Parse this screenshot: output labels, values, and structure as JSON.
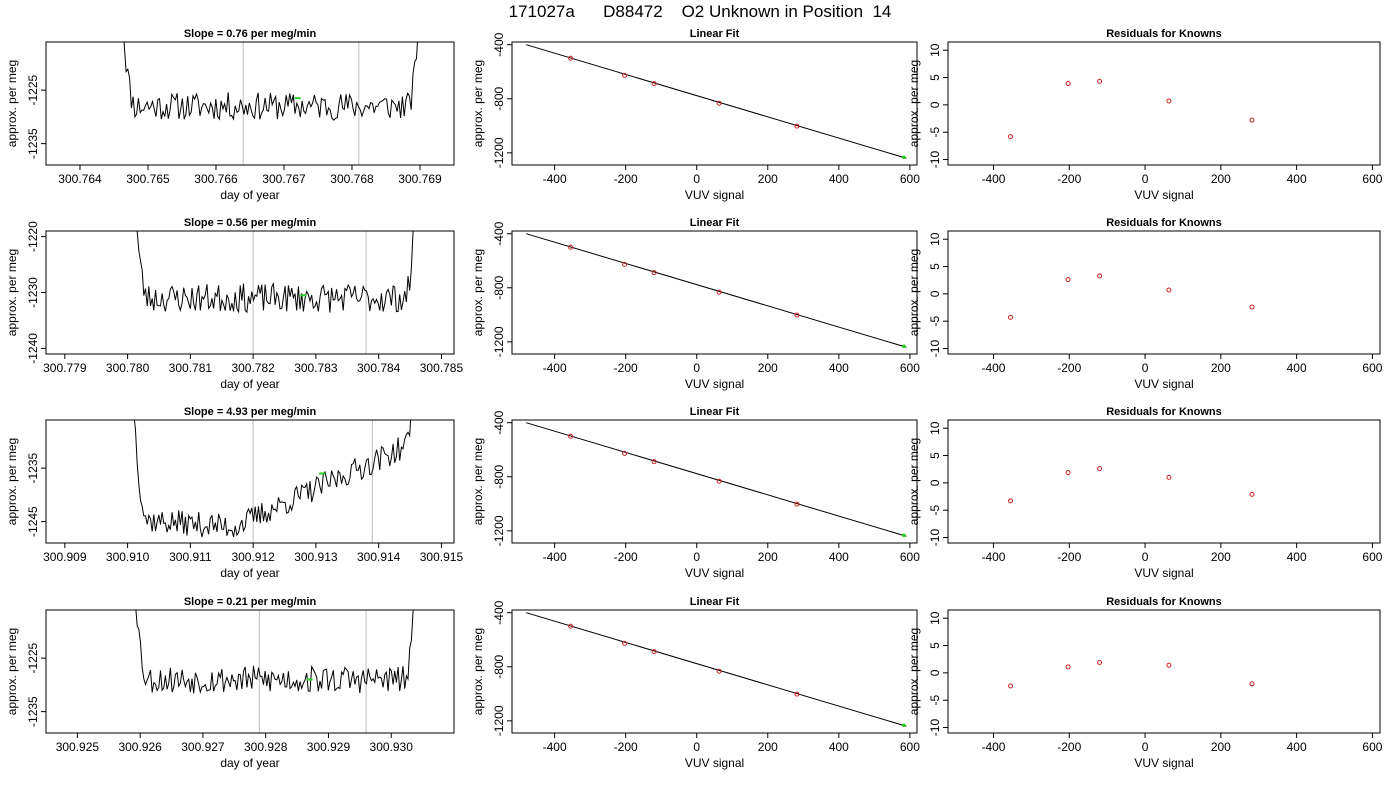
{
  "page": {
    "title": "171027a      D88472    O2 Unknown in Position  14"
  },
  "colors": {
    "trace": "#000000",
    "marker_green": "#22cc22",
    "known_red": "#cc2222",
    "vline": "#c8c8c8",
    "fit_line": "#000000"
  },
  "chart_data": [
    {
      "type": "line",
      "row": 1,
      "panel": "trace",
      "title": "Slope =  0.76  per meg/min",
      "xlabel": "day of year",
      "ylabel": "approx. per meg",
      "xlim": [
        300.7635,
        300.7695
      ],
      "ylim": [
        -1239,
        -1216
      ],
      "xticks": [
        300.764,
        300.765,
        300.766,
        300.767,
        300.768,
        300.769
      ],
      "yticks": [
        -1225,
        -1235
      ],
      "vlines": [
        300.7664,
        300.7681
      ],
      "t_start": 300.7646,
      "t_end": 300.769,
      "baseline": -1228,
      "noise": 2,
      "green_point": {
        "x": 300.7672,
        "y": -1226.5
      },
      "seed": 11
    },
    {
      "type": "scatter",
      "row": 1,
      "panel": "fit",
      "title": "Linear Fit",
      "xlabel": "VUV signal",
      "ylabel": "approx. per meg",
      "xlim": [
        -520,
        620
      ],
      "ylim": [
        -1290,
        -380
      ],
      "xticks": [
        -400,
        -200,
        0,
        200,
        400,
        600
      ],
      "yticks": [
        -400,
        -800,
        -1200
      ],
      "fit_line": {
        "x": [
          -480,
          590
        ],
        "y": [
          -400,
          -1240
        ]
      },
      "knowns": {
        "x": [
          -355,
          -203,
          -120,
          63,
          282
        ],
        "y": [
          -500,
          -627,
          -688,
          -833,
          -1002
        ]
      },
      "unknown": {
        "x": 583,
        "y": -1233
      }
    },
    {
      "type": "scatter",
      "row": 1,
      "panel": "residuals",
      "title": "Residuals for Knowns",
      "xlabel": "VUV signal",
      "ylabel": "approx. per meg",
      "xlim": [
        -520,
        620
      ],
      "ylim": [
        -11,
        11.5
      ],
      "xticks": [
        -400,
        -200,
        0,
        200,
        400,
        600
      ],
      "yticks": [
        10,
        5,
        0,
        -5,
        -10
      ],
      "x": [
        -355,
        -203,
        -120,
        63,
        282
      ],
      "y": [
        -5.8,
        3.9,
        4.3,
        0.7,
        -2.8
      ]
    },
    {
      "type": "line",
      "row": 2,
      "panel": "trace",
      "title": "Slope =  0.56  per meg/min",
      "xlabel": "day of year",
      "ylabel": "approx. per meg",
      "xlim": [
        300.7787,
        300.7852
      ],
      "ylim": [
        -1241,
        -1219
      ],
      "xticks": [
        300.779,
        300.78,
        300.781,
        300.782,
        300.783,
        300.784,
        300.785
      ],
      "yticks": [
        -1220,
        -1230,
        -1240
      ],
      "vlines": [
        300.782,
        300.7838
      ],
      "t_start": 300.7801,
      "t_end": 300.7846,
      "baseline": -1231,
      "noise": 2,
      "green_point": {
        "x": 300.7828,
        "y": -1230.5
      },
      "seed": 23
    },
    {
      "type": "scatter",
      "row": 2,
      "panel": "fit",
      "title": "Linear Fit",
      "xlabel": "VUV signal",
      "ylabel": "approx. per meg",
      "xlim": [
        -520,
        620
      ],
      "ylim": [
        -1290,
        -380
      ],
      "xticks": [
        -400,
        -200,
        0,
        200,
        400,
        600
      ],
      "yticks": [
        -400,
        -800,
        -1200
      ],
      "fit_line": {
        "x": [
          -480,
          590
        ],
        "y": [
          -400,
          -1240
        ]
      },
      "knowns": {
        "x": [
          -355,
          -203,
          -120,
          63,
          282
        ],
        "y": [
          -500,
          -627,
          -688,
          -833,
          -1002
        ]
      },
      "unknown": {
        "x": 583,
        "y": -1233
      }
    },
    {
      "type": "scatter",
      "row": 2,
      "panel": "residuals",
      "title": "Residuals for Knowns",
      "xlabel": "VUV signal",
      "ylabel": "approx. per meg",
      "xlim": [
        -520,
        620
      ],
      "ylim": [
        -11,
        11.5
      ],
      "xticks": [
        -400,
        -200,
        0,
        200,
        400,
        600
      ],
      "yticks": [
        10,
        5,
        0,
        -5,
        -10
      ],
      "x": [
        -355,
        -203,
        -120,
        63,
        282
      ],
      "y": [
        -4.3,
        2.6,
        3.3,
        0.7,
        -2.4
      ]
    },
    {
      "type": "line",
      "row": 3,
      "panel": "trace",
      "title": "Slope =  4.93  per meg/min",
      "xlabel": "day of year",
      "ylabel": "approx. per meg",
      "xlim": [
        300.9087,
        300.9152
      ],
      "ylim": [
        -1249,
        -1226
      ],
      "xticks": [
        300.909,
        300.91,
        300.911,
        300.912,
        300.913,
        300.914,
        300.915
      ],
      "yticks": [
        -1235,
        -1245
      ],
      "vlines": [
        300.912,
        300.9139
      ],
      "t_start": 300.9101,
      "t_end": 300.9146,
      "baseline": -1242,
      "noise": 1.8,
      "trend": {
        "min_t": 300.9117,
        "min_y": -1246,
        "end_y": -1230
      },
      "green_point": {
        "x": 300.9131,
        "y": -1236
      },
      "seed": 37
    },
    {
      "type": "scatter",
      "row": 3,
      "panel": "fit",
      "title": "Linear Fit",
      "xlabel": "VUV signal",
      "ylabel": "approx. per meg",
      "xlim": [
        -520,
        620
      ],
      "ylim": [
        -1290,
        -380
      ],
      "xticks": [
        -400,
        -200,
        0,
        200,
        400,
        600
      ],
      "yticks": [
        -400,
        -800,
        -1200
      ],
      "fit_line": {
        "x": [
          -480,
          590
        ],
        "y": [
          -400,
          -1240
        ]
      },
      "knowns": {
        "x": [
          -355,
          -203,
          -120,
          63,
          282
        ],
        "y": [
          -500,
          -627,
          -688,
          -833,
          -1002
        ]
      },
      "unknown": {
        "x": 583,
        "y": -1233
      }
    },
    {
      "type": "scatter",
      "row": 3,
      "panel": "residuals",
      "title": "Residuals for Knowns",
      "xlabel": "VUV signal",
      "ylabel": "approx. per meg",
      "xlim": [
        -520,
        620
      ],
      "ylim": [
        -11,
        11.5
      ],
      "xticks": [
        -400,
        -200,
        0,
        200,
        400,
        600
      ],
      "yticks": [
        10,
        5,
        0,
        -5,
        -10
      ],
      "x": [
        -355,
        -203,
        -120,
        63,
        282
      ],
      "y": [
        -3.3,
        1.9,
        2.6,
        1.0,
        -2.1
      ]
    },
    {
      "type": "line",
      "row": 4,
      "panel": "trace",
      "title": "Slope =  0.21  per meg/min",
      "xlabel": "day of year",
      "ylabel": "approx. per meg",
      "xlim": [
        300.9245,
        300.931
      ],
      "ylim": [
        -1239,
        -1216
      ],
      "xticks": [
        300.925,
        300.926,
        300.927,
        300.928,
        300.929,
        300.93
      ],
      "yticks": [
        -1225,
        -1235
      ],
      "vlines": [
        300.9279,
        300.9296
      ],
      "t_start": 300.9259,
      "t_end": 300.9304,
      "baseline": -1229,
      "noise": 2,
      "green_point": {
        "x": 300.9287,
        "y": -1229
      },
      "seed": 53
    },
    {
      "type": "scatter",
      "row": 4,
      "panel": "fit",
      "title": "Linear Fit",
      "xlabel": "VUV signal",
      "ylabel": "approx. per meg",
      "xlim": [
        -520,
        620
      ],
      "ylim": [
        -1290,
        -380
      ],
      "xticks": [
        -400,
        -200,
        0,
        200,
        400,
        600
      ],
      "yticks": [
        -400,
        -800,
        -1200
      ],
      "fit_line": {
        "x": [
          -480,
          590
        ],
        "y": [
          -400,
          -1240
        ]
      },
      "knowns": {
        "x": [
          -355,
          -203,
          -120,
          63,
          282
        ],
        "y": [
          -500,
          -627,
          -688,
          -833,
          -1002
        ]
      },
      "unknown": {
        "x": 583,
        "y": -1233
      }
    },
    {
      "type": "scatter",
      "row": 4,
      "panel": "residuals",
      "title": "Residuals for Knowns",
      "xlabel": "VUV signal",
      "ylabel": "approx. per meg",
      "xlim": [
        -520,
        620
      ],
      "ylim": [
        -11,
        11.5
      ],
      "xticks": [
        -400,
        -200,
        0,
        200,
        400,
        600
      ],
      "yticks": [
        10,
        5,
        0,
        -5,
        -10
      ],
      "x": [
        -355,
        -203,
        -120,
        63,
        282
      ],
      "y": [
        -2.4,
        1.1,
        1.9,
        1.4,
        -2.0
      ]
    }
  ]
}
